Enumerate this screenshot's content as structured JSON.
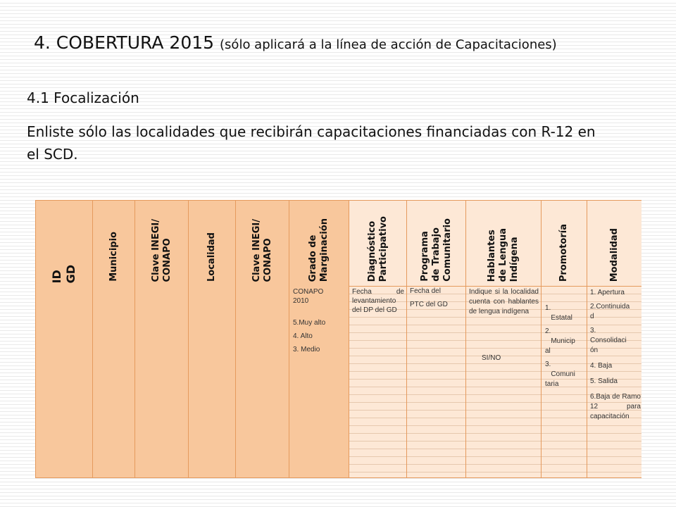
{
  "title": {
    "main": "4. COBERTURA 2015",
    "sub": "(sólo aplicará a la línea de acción de Capacitaciones)"
  },
  "section": {
    "heading": "4.1  Focalización",
    "instruction": "Enliste sólo las localidades que recibirán capacitaciones financiadas con R-12 en el  SCD."
  },
  "table": {
    "headers": [
      "ID\nGD",
      "Municipio",
      "Clave INEGI/\nCONAPO",
      "Localidad",
      "Clave INEGI/\nCONAPO",
      "Grado de\nMarginación",
      "Diagnóstico\nParticipativo",
      "Programa\nde Trabajo\nComunitario",
      "Hablantes\nde Lengua\nIndígena",
      "Promotoría",
      "Modalidad"
    ],
    "marginacion": {
      "source": "CONAPO\n2010",
      "options": [
        "5.Muy alto",
        "4. Alto",
        "3. Medio"
      ]
    },
    "diagnostico_note": "Fecha de levantamiento del DP del GD",
    "programa_note": [
      "Fecha del",
      "PTC del GD"
    ],
    "hablantes_note": "Indique si la localidad cuenta con hablantes de lengua indígena",
    "hablantes_value": "SI/NO",
    "promotoria_options": [
      "1.\n   Estatal",
      "2.\n   Municip\nal",
      "3.\n   Comuni\ntaria"
    ],
    "modalidad_options": [
      "1. Apertura",
      "2.Continuida\nd",
      "3.\nConsolidaci\nón",
      "4. Baja",
      "5. Salida",
      "6.Baja de Ramo 12 para capacitación"
    ]
  }
}
